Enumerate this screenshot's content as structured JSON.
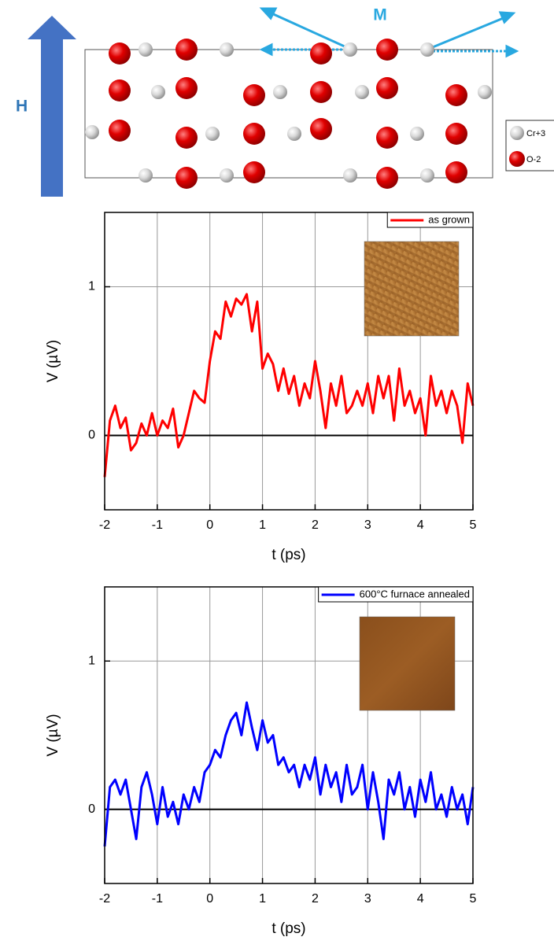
{
  "diagram": {
    "field_label": "H",
    "magnetization_label": "M",
    "legend": [
      "Cr+3",
      "O-2"
    ]
  },
  "chart_data": [
    {
      "type": "line",
      "xlabel": "t (ps)",
      "ylabel": "V (µV)",
      "xlim": [
        -2,
        5
      ],
      "ylim": [
        -0.5,
        1.5
      ],
      "xticks": [
        -2,
        -1,
        0,
        1,
        2,
        3,
        4,
        5
      ],
      "yticks": [
        0,
        1
      ],
      "grid": true,
      "legend": "top-right",
      "x": [
        -2,
        -1.9,
        -1.8,
        -1.7,
        -1.6,
        -1.5,
        -1.4,
        -1.3,
        -1.2,
        -1.1,
        -1,
        -0.9,
        -0.8,
        -0.7,
        -0.6,
        -0.5,
        -0.4,
        -0.3,
        -0.2,
        -0.1,
        0,
        0.1,
        0.2,
        0.3,
        0.4,
        0.5,
        0.6,
        0.7,
        0.8,
        0.9,
        1,
        1.1,
        1.2,
        1.3,
        1.4,
        1.5,
        1.6,
        1.7,
        1.8,
        1.9,
        2,
        2.1,
        2.2,
        2.3,
        2.4,
        2.5,
        2.6,
        2.7,
        2.8,
        2.9,
        3,
        3.1,
        3.2,
        3.3,
        3.4,
        3.5,
        3.6,
        3.7,
        3.8,
        3.9,
        4,
        4.1,
        4.2,
        4.3,
        4.4,
        4.5,
        4.6,
        4.7,
        4.8,
        4.9,
        5
      ],
      "series": [
        {
          "name": "as grown",
          "color": "#ff0000",
          "values": [
            -0.28,
            0.1,
            0.2,
            0.05,
            0.12,
            -0.1,
            -0.05,
            0.08,
            0,
            0.15,
            0,
            0.1,
            0.05,
            0.18,
            -0.08,
            0,
            0.15,
            0.3,
            0.25,
            0.22,
            0.5,
            0.7,
            0.65,
            0.9,
            0.8,
            0.92,
            0.88,
            0.95,
            0.7,
            0.9,
            0.45,
            0.55,
            0.48,
            0.3,
            0.45,
            0.28,
            0.4,
            0.2,
            0.35,
            0.25,
            0.5,
            0.3,
            0.05,
            0.35,
            0.2,
            0.4,
            0.15,
            0.2,
            0.3,
            0.2,
            0.35,
            0.15,
            0.4,
            0.25,
            0.4,
            0.1,
            0.45,
            0.2,
            0.3,
            0.15,
            0.25,
            0,
            0.4,
            0.2,
            0.3,
            0.15,
            0.3,
            0.2,
            -0.05,
            0.35,
            0.2
          ]
        }
      ]
    },
    {
      "type": "line",
      "xlabel": "t (ps)",
      "ylabel": "V (µV)",
      "xlim": [
        -2,
        5
      ],
      "ylim": [
        -0.5,
        1.5
      ],
      "xticks": [
        -2,
        -1,
        0,
        1,
        2,
        3,
        4,
        5
      ],
      "yticks": [
        0,
        1
      ],
      "grid": true,
      "legend": "top-right",
      "x": [
        -2,
        -1.9,
        -1.8,
        -1.7,
        -1.6,
        -1.5,
        -1.4,
        -1.3,
        -1.2,
        -1.1,
        -1,
        -0.9,
        -0.8,
        -0.7,
        -0.6,
        -0.5,
        -0.4,
        -0.3,
        -0.2,
        -0.1,
        0,
        0.1,
        0.2,
        0.3,
        0.4,
        0.5,
        0.6,
        0.7,
        0.8,
        0.9,
        1,
        1.1,
        1.2,
        1.3,
        1.4,
        1.5,
        1.6,
        1.7,
        1.8,
        1.9,
        2,
        2.1,
        2.2,
        2.3,
        2.4,
        2.5,
        2.6,
        2.7,
        2.8,
        2.9,
        3,
        3.1,
        3.2,
        3.3,
        3.4,
        3.5,
        3.6,
        3.7,
        3.8,
        3.9,
        4,
        4.1,
        4.2,
        4.3,
        4.4,
        4.5,
        4.6,
        4.7,
        4.8,
        4.9,
        5
      ],
      "series": [
        {
          "name": "600°C furnace annealed",
          "color": "#0000ff",
          "values": [
            -0.25,
            0.15,
            0.2,
            0.1,
            0.2,
            0,
            -0.2,
            0.15,
            0.25,
            0.1,
            -0.1,
            0.15,
            -0.05,
            0.05,
            -0.1,
            0.1,
            0,
            0.15,
            0.05,
            0.25,
            0.3,
            0.4,
            0.35,
            0.5,
            0.6,
            0.65,
            0.5,
            0.72,
            0.55,
            0.4,
            0.6,
            0.45,
            0.5,
            0.3,
            0.35,
            0.25,
            0.3,
            0.15,
            0.3,
            0.2,
            0.35,
            0.1,
            0.3,
            0.15,
            0.25,
            0.05,
            0.3,
            0.1,
            0.15,
            0.3,
            0,
            0.25,
            0.05,
            -0.2,
            0.2,
            0.1,
            0.25,
            0,
            0.15,
            -0.05,
            0.2,
            0.05,
            0.25,
            0,
            0.1,
            -0.05,
            0.15,
            0,
            0.1,
            -0.1,
            0.15
          ]
        }
      ]
    }
  ]
}
